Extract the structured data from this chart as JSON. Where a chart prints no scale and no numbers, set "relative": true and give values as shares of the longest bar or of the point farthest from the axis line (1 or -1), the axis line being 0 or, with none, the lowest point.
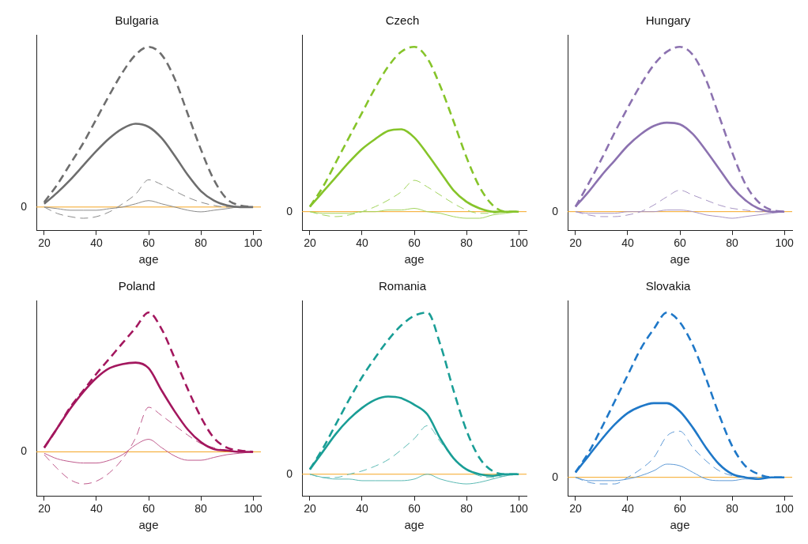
{
  "chart_data": [
    {
      "type": "line",
      "title": "Bulgaria",
      "xlabel": "age",
      "relative": true,
      "xlim": [
        17,
        103
      ],
      "xticks": [
        20,
        40,
        60,
        80,
        100
      ],
      "ref_lines": [
        {
          "axis": "y",
          "value": 0,
          "label": "0",
          "color": "#f5a623"
        }
      ],
      "x": [
        20,
        25,
        30,
        35,
        40,
        45,
        50,
        55,
        60,
        65,
        70,
        75,
        80,
        85,
        90,
        95,
        100
      ],
      "series": [
        {
          "color": "#6e6e6e",
          "line_style": "dashed",
          "values": [
            0.03,
            0.14,
            0.27,
            0.4,
            0.55,
            0.7,
            0.84,
            0.95,
            1.0,
            0.95,
            0.8,
            0.58,
            0.36,
            0.17,
            0.05,
            0.01,
            0
          ]
        },
        {
          "color": "#6e6e6e",
          "line_style": "solid",
          "values": [
            0.02,
            0.09,
            0.17,
            0.26,
            0.35,
            0.43,
            0.49,
            0.52,
            0.5,
            0.43,
            0.32,
            0.2,
            0.1,
            0.04,
            0.01,
            0,
            0
          ]
        },
        {
          "color": "#8a8a8a",
          "line_style": "dashed",
          "values": [
            0,
            -0.04,
            -0.06,
            -0.07,
            -0.06,
            -0.03,
            0.02,
            0.08,
            0.17,
            0.14,
            0.1,
            0.06,
            0.03,
            0.01,
            0,
            0,
            0
          ]
        },
        {
          "color": "#8a8a8a",
          "line_style": "solid",
          "values": [
            0,
            -0.01,
            -0.02,
            -0.02,
            -0.02,
            -0.01,
            0,
            0.02,
            0.04,
            0.02,
            0,
            -0.02,
            -0.03,
            -0.02,
            -0.01,
            0,
            0
          ]
        }
      ]
    },
    {
      "type": "line",
      "title": "Czech",
      "xlabel": "age",
      "relative": true,
      "xlim": [
        17,
        103
      ],
      "xticks": [
        20,
        40,
        60,
        80,
        100
      ],
      "ref_lines": [
        {
          "axis": "y",
          "value": 0,
          "label": "0",
          "color": "#f5a623"
        }
      ],
      "x": [
        20,
        25,
        30,
        35,
        40,
        45,
        50,
        55,
        60,
        65,
        70,
        75,
        80,
        85,
        90,
        95,
        100
      ],
      "series": [
        {
          "color": "#86c42a",
          "line_style": "dashed",
          "values": [
            0.03,
            0.15,
            0.3,
            0.45,
            0.6,
            0.75,
            0.88,
            0.97,
            1.0,
            0.93,
            0.76,
            0.55,
            0.33,
            0.15,
            0.04,
            0,
            0
          ]
        },
        {
          "color": "#86c42a",
          "line_style": "solid",
          "values": [
            0.03,
            0.12,
            0.21,
            0.3,
            0.38,
            0.44,
            0.49,
            0.5,
            0.45,
            0.35,
            0.24,
            0.13,
            0.06,
            0.02,
            0,
            0,
            0
          ]
        },
        {
          "color": "#a2d45e",
          "line_style": "dashed",
          "values": [
            0,
            -0.02,
            -0.03,
            -0.02,
            0,
            0.03,
            0.07,
            0.12,
            0.19,
            0.15,
            0.1,
            0.05,
            0.01,
            -0.01,
            -0.01,
            0,
            0
          ]
        },
        {
          "color": "#a2d45e",
          "line_style": "solid",
          "values": [
            0,
            -0.01,
            -0.01,
            -0.01,
            0,
            0,
            0.01,
            0.01,
            0.02,
            0,
            -0.01,
            -0.03,
            -0.04,
            -0.04,
            -0.02,
            -0.01,
            0
          ]
        }
      ]
    },
    {
      "type": "line",
      "title": "Hungary",
      "xlabel": "age",
      "relative": true,
      "xlim": [
        17,
        103
      ],
      "xticks": [
        20,
        40,
        60,
        80,
        100
      ],
      "ref_lines": [
        {
          "axis": "y",
          "value": 0,
          "label": "0",
          "color": "#f5a623"
        }
      ],
      "x": [
        20,
        25,
        30,
        35,
        40,
        45,
        50,
        55,
        60,
        65,
        70,
        75,
        80,
        85,
        90,
        95,
        100
      ],
      "series": [
        {
          "color": "#8c72b0",
          "line_style": "dashed",
          "values": [
            0.03,
            0.17,
            0.32,
            0.48,
            0.63,
            0.77,
            0.89,
            0.97,
            1.0,
            0.95,
            0.8,
            0.58,
            0.36,
            0.17,
            0.06,
            0.01,
            0
          ]
        },
        {
          "color": "#8c72b0",
          "line_style": "solid",
          "values": [
            0.03,
            0.12,
            0.22,
            0.31,
            0.4,
            0.47,
            0.52,
            0.54,
            0.53,
            0.47,
            0.37,
            0.26,
            0.15,
            0.07,
            0.02,
            0,
            0
          ]
        },
        {
          "color": "#a795c4",
          "line_style": "dashed",
          "values": [
            0,
            -0.02,
            -0.03,
            -0.03,
            -0.02,
            0,
            0.04,
            0.09,
            0.13,
            0.1,
            0.07,
            0.04,
            0.02,
            0.01,
            0,
            0,
            0
          ]
        },
        {
          "color": "#a795c4",
          "line_style": "solid",
          "values": [
            0,
            -0.01,
            -0.01,
            -0.01,
            0,
            0,
            0,
            0.01,
            0.01,
            0,
            -0.02,
            -0.03,
            -0.04,
            -0.03,
            -0.02,
            -0.01,
            0
          ]
        }
      ]
    },
    {
      "type": "line",
      "title": "Poland",
      "xlabel": "age",
      "relative": true,
      "xlim": [
        17,
        103
      ],
      "xticks": [
        20,
        40,
        60,
        80,
        100
      ],
      "ref_lines": [
        {
          "axis": "y",
          "value": 0,
          "label": "0",
          "color": "#f5a623"
        }
      ],
      "x": [
        20,
        25,
        30,
        35,
        40,
        45,
        50,
        55,
        60,
        65,
        70,
        75,
        80,
        85,
        90,
        95,
        100
      ],
      "series": [
        {
          "color": "#a3175e",
          "line_style": "dashed",
          "values": [
            0.03,
            0.17,
            0.32,
            0.44,
            0.56,
            0.67,
            0.78,
            0.89,
            1.0,
            0.88,
            0.67,
            0.45,
            0.25,
            0.1,
            0.03,
            0.01,
            0
          ]
        },
        {
          "color": "#a3175e",
          "line_style": "solid",
          "values": [
            0.03,
            0.17,
            0.31,
            0.43,
            0.53,
            0.6,
            0.63,
            0.64,
            0.6,
            0.44,
            0.29,
            0.16,
            0.07,
            0.02,
            0.01,
            0,
            0
          ]
        },
        {
          "color": "#bf5a8c",
          "line_style": "dashed",
          "values": [
            -0.02,
            -0.12,
            -0.2,
            -0.23,
            -0.21,
            -0.15,
            -0.05,
            0.1,
            0.32,
            0.26,
            0.19,
            0.12,
            0.06,
            0.03,
            0.01,
            0,
            0
          ]
        },
        {
          "color": "#bf5a8c",
          "line_style": "solid",
          "values": [
            -0.01,
            -0.05,
            -0.07,
            -0.08,
            -0.08,
            -0.06,
            -0.02,
            0.05,
            0.09,
            0.03,
            -0.03,
            -0.06,
            -0.06,
            -0.04,
            -0.02,
            -0.01,
            0
          ]
        }
      ]
    },
    {
      "type": "line",
      "title": "Romania",
      "xlabel": "age",
      "relative": true,
      "xlim": [
        17,
        103
      ],
      "xticks": [
        20,
        40,
        60,
        80,
        100
      ],
      "ref_lines": [
        {
          "axis": "y",
          "value": 0,
          "label": "0",
          "color": "#f5a623"
        }
      ],
      "x": [
        20,
        25,
        30,
        35,
        40,
        45,
        50,
        55,
        60,
        65,
        70,
        75,
        80,
        85,
        90,
        95,
        100
      ],
      "series": [
        {
          "color": "#1a9e96",
          "line_style": "dashed",
          "values": [
            0.03,
            0.16,
            0.31,
            0.46,
            0.6,
            0.72,
            0.83,
            0.92,
            0.98,
            1.0,
            0.8,
            0.52,
            0.27,
            0.1,
            0.02,
            0,
            0
          ]
        },
        {
          "color": "#1a9e96",
          "line_style": "solid",
          "values": [
            0.03,
            0.14,
            0.25,
            0.34,
            0.41,
            0.46,
            0.48,
            0.47,
            0.43,
            0.37,
            0.22,
            0.1,
            0.03,
            0,
            -0.01,
            0,
            0
          ]
        },
        {
          "color": "#5cbab4",
          "line_style": "dashed",
          "values": [
            0,
            -0.02,
            -0.02,
            0,
            0.02,
            0.05,
            0.09,
            0.15,
            0.22,
            0.3,
            0.2,
            0.1,
            0.03,
            -0.01,
            -0.02,
            -0.01,
            0
          ]
        },
        {
          "color": "#5cbab4",
          "line_style": "solid",
          "values": [
            0,
            -0.02,
            -0.03,
            -0.03,
            -0.04,
            -0.04,
            -0.04,
            -0.04,
            -0.03,
            0,
            -0.03,
            -0.05,
            -0.06,
            -0.05,
            -0.03,
            -0.01,
            0
          ]
        }
      ]
    },
    {
      "type": "line",
      "title": "Slovakia",
      "xlabel": "age",
      "relative": true,
      "xlim": [
        17,
        103
      ],
      "xticks": [
        20,
        40,
        60,
        80,
        100
      ],
      "ref_lines": [
        {
          "axis": "y",
          "value": 0,
          "label": "0",
          "color": "#f5a623"
        }
      ],
      "x": [
        20,
        25,
        30,
        35,
        40,
        45,
        50,
        55,
        60,
        65,
        70,
        75,
        80,
        85,
        90,
        95,
        100
      ],
      "series": [
        {
          "color": "#1f78c8",
          "line_style": "dashed",
          "values": [
            0.03,
            0.15,
            0.3,
            0.46,
            0.62,
            0.78,
            0.9,
            1.0,
            0.94,
            0.8,
            0.6,
            0.38,
            0.19,
            0.07,
            0.02,
            0,
            0
          ]
        },
        {
          "color": "#1f78c8",
          "line_style": "solid",
          "values": [
            0.03,
            0.13,
            0.23,
            0.32,
            0.39,
            0.43,
            0.45,
            0.45,
            0.4,
            0.3,
            0.18,
            0.08,
            0.02,
            0,
            -0.01,
            0,
            0
          ]
        },
        {
          "color": "#5f9ad6",
          "line_style": "dashed",
          "values": [
            0,
            -0.03,
            -0.04,
            -0.04,
            0,
            0.05,
            0.12,
            0.25,
            0.28,
            0.18,
            0.1,
            0.04,
            0.01,
            0,
            0,
            0,
            0
          ]
        },
        {
          "color": "#5f9ad6",
          "line_style": "solid",
          "values": [
            0,
            -0.02,
            -0.02,
            -0.02,
            -0.01,
            0.01,
            0.04,
            0.08,
            0.07,
            0.03,
            -0.01,
            -0.02,
            -0.02,
            -0.01,
            -0.01,
            0,
            0
          ]
        }
      ]
    }
  ]
}
